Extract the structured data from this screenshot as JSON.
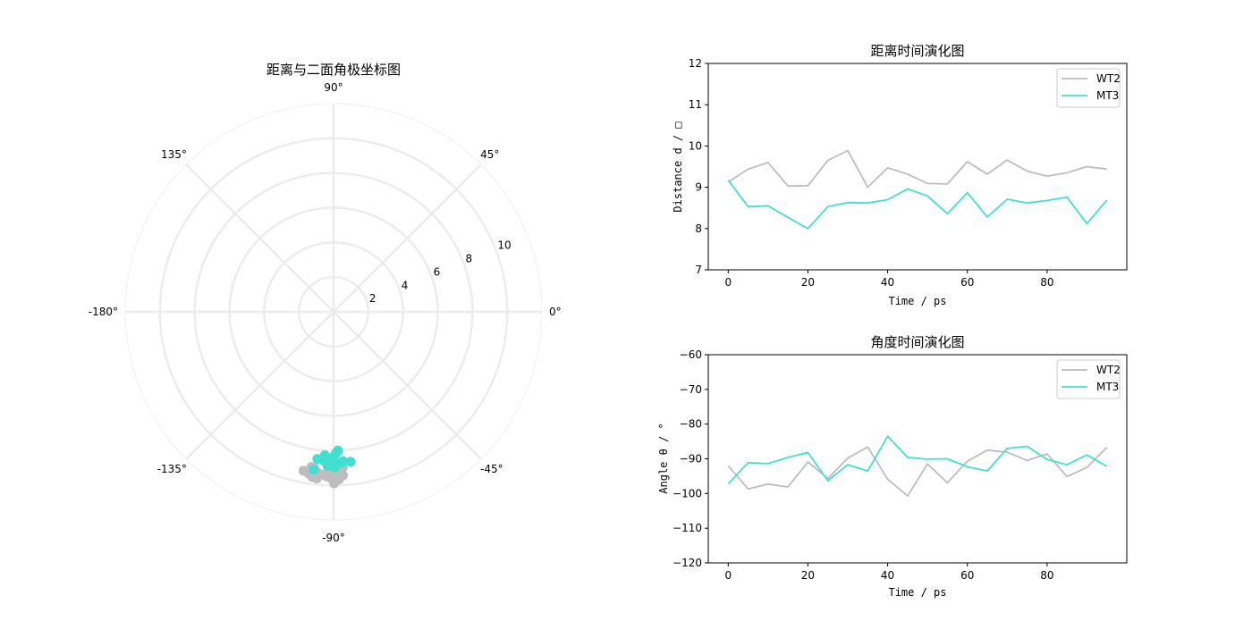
{
  "chart_data": [
    {
      "type": "scatter",
      "projection": "polar",
      "title": "距离与二面角极坐标图",
      "angle_ticks": [
        "0°",
        "45°",
        "90°",
        "135°",
        "-180°",
        "-135°",
        "-90°",
        "-45°"
      ],
      "radial_ticks": [
        "2",
        "4",
        "6",
        "8",
        "10"
      ],
      "rlim": [
        0,
        12
      ],
      "grid": true,
      "series": [
        {
          "name": "WT2",
          "color": "#bdbdbd",
          "theta_deg": [
            -92,
            -98.7,
            -97.3,
            -98.1,
            -90.9,
            -95.7,
            -89.8,
            -86.6,
            -95.9,
            -100.7,
            -91.5,
            -96.9,
            -90.7,
            -87.5,
            -88.1,
            -90.5,
            -88.6,
            -95.1,
            -92.5,
            -86.7
          ],
          "r": [
            9.13,
            9.44,
            9.6,
            9.03,
            9.04,
            9.65,
            9.89,
            9.0,
            9.47,
            9.32,
            9.09,
            9.08,
            9.62,
            9.32,
            9.66,
            9.39,
            9.27,
            9.35,
            9.5,
            9.44
          ]
        },
        {
          "name": "MT3",
          "color": "#40e0d0",
          "theta_deg": [
            -97.2,
            -91.1,
            -91.4,
            -89.6,
            -88.2,
            -96.3,
            -91.7,
            -93.5,
            -83.5,
            -89.6,
            -90.1,
            -90.0,
            -92.3,
            -93.5,
            -87.0,
            -86.4,
            -90.2,
            -91.7,
            -88.9,
            -92.2
          ],
          "r": [
            9.17,
            8.53,
            8.55,
            8.27,
            8.0,
            8.53,
            8.63,
            8.62,
            8.7,
            8.96,
            8.79,
            8.36,
            8.87,
            8.28,
            8.71,
            8.62,
            8.68,
            8.76,
            8.12,
            8.69
          ]
        }
      ]
    },
    {
      "type": "line",
      "title": "距离时间演化图",
      "xlabel": "Time / ps",
      "ylabel": "Distance d / □",
      "xlim": [
        -5,
        100
      ],
      "ylim": [
        7,
        12
      ],
      "xticks": [
        0,
        20,
        40,
        60,
        80
      ],
      "yticks": [
        7,
        8,
        9,
        10,
        11,
        12
      ],
      "legend": "top-right",
      "x": [
        0,
        5,
        10,
        15,
        20,
        25,
        30,
        35,
        40,
        45,
        50,
        55,
        60,
        65,
        70,
        75,
        80,
        85,
        90,
        95
      ],
      "series": [
        {
          "name": "WT2",
          "color": "#bdbdbd",
          "values": [
            9.13,
            9.44,
            9.6,
            9.03,
            9.04,
            9.65,
            9.89,
            9.0,
            9.47,
            9.32,
            9.09,
            9.08,
            9.62,
            9.32,
            9.66,
            9.39,
            9.27,
            9.35,
            9.5,
            9.44
          ]
        },
        {
          "name": "MT3",
          "color": "#40e0d0",
          "values": [
            9.17,
            8.53,
            8.55,
            8.27,
            8.0,
            8.53,
            8.63,
            8.62,
            8.7,
            8.96,
            8.79,
            8.36,
            8.87,
            8.28,
            8.71,
            8.62,
            8.68,
            8.76,
            8.12,
            8.69
          ]
        }
      ]
    },
    {
      "type": "line",
      "title": "角度时间演化图",
      "xlabel": "Time / ps",
      "ylabel": "Angle θ / °",
      "xlim": [
        -5,
        100
      ],
      "ylim": [
        -120,
        -60
      ],
      "xticks": [
        0,
        20,
        40,
        60,
        80
      ],
      "yticks": [
        -120,
        -110,
        -100,
        -90,
        -80,
        -70,
        -60
      ],
      "legend": "top-right",
      "x": [
        0,
        5,
        10,
        15,
        20,
        25,
        30,
        35,
        40,
        45,
        50,
        55,
        60,
        65,
        70,
        75,
        80,
        85,
        90,
        95
      ],
      "series": [
        {
          "name": "WT2",
          "color": "#bdbdbd",
          "values": [
            -92,
            -98.7,
            -97.3,
            -98.1,
            -90.9,
            -95.7,
            -89.8,
            -86.6,
            -95.9,
            -100.7,
            -91.5,
            -96.9,
            -90.7,
            -87.5,
            -88.1,
            -90.5,
            -88.6,
            -95.1,
            -92.5,
            -86.7
          ]
        },
        {
          "name": "MT3",
          "color": "#40e0d0",
          "values": [
            -97.2,
            -91.1,
            -91.4,
            -89.6,
            -88.2,
            -96.3,
            -91.7,
            -93.5,
            -83.5,
            -89.6,
            -90.1,
            -90.0,
            -92.3,
            -93.5,
            -87.0,
            -86.4,
            -90.2,
            -91.7,
            -88.9,
            -92.2
          ]
        }
      ]
    }
  ]
}
